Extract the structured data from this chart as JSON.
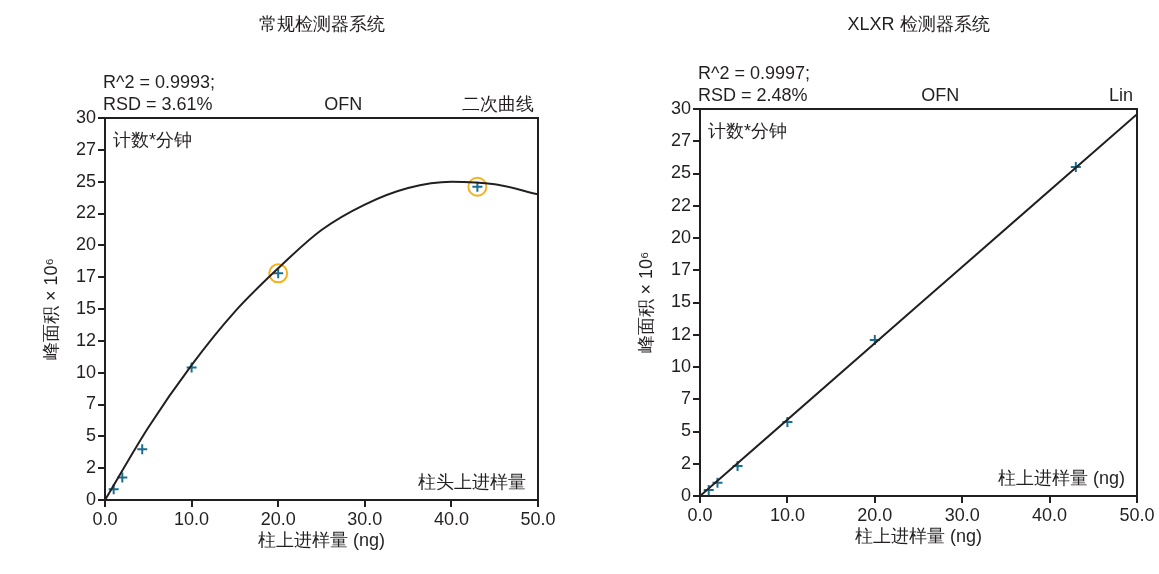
{
  "chart_data": [
    {
      "type": "scatter",
      "title": "常规检测器系统",
      "xlabel": "柱上进样量 (ng)",
      "ylabel": "峰面积 × 10⁶",
      "marker": "cross",
      "legend": false,
      "grid": false,
      "xlim": [
        0,
        50
      ],
      "xticks": [
        {
          "value": 0,
          "label": "0.0"
        },
        {
          "value": 10,
          "label": "10.0"
        },
        {
          "value": 20,
          "label": "20.0"
        },
        {
          "value": 30,
          "label": "30.0"
        },
        {
          "value": 40,
          "label": "40.0"
        },
        {
          "value": 50,
          "label": "50.0"
        }
      ],
      "ylim": [
        0,
        30
      ],
      "yticks": [
        0,
        {
          "value": 2.5,
          "label": "2"
        },
        5,
        {
          "value": 7.5,
          "label": "7"
        },
        10,
        {
          "value": 12.5,
          "label": "12"
        },
        15,
        {
          "value": 17.5,
          "label": "17"
        },
        20,
        {
          "value": 22.5,
          "label": "22"
        },
        25,
        {
          "value": 27.5,
          "label": "27"
        },
        30
      ],
      "annotations": [
        "R^2 = 0.9993;",
        "RSD = 3.61%",
        "OFN",
        "二次曲线",
        "计数*分钟",
        "柱头上进样量"
      ],
      "series": [
        {
          "type": "line",
          "color": "#231f20",
          "marker": "none",
          "x": [
            0,
            5,
            10,
            15,
            20,
            25,
            30,
            35,
            40,
            45,
            50
          ],
          "values": [
            0,
            5.7,
            10.6,
            14.8,
            18.2,
            21.2,
            23.2,
            24.5,
            25.0,
            24.8,
            24.0
          ]
        },
        {
          "color": "#1a6e8e",
          "x": [
            1,
            2,
            4.3,
            10,
            20,
            43
          ],
          "values": [
            0.84,
            1.76,
            3.98,
            10.4,
            17.8,
            24.6
          ]
        },
        {
          "type": "scatter",
          "color": "#f5b120",
          "marker": "circle",
          "x": [
            20,
            43
          ],
          "values": [
            17.8,
            24.6
          ]
        }
      ]
    },
    {
      "type": "scatter",
      "title": "XLXR 检测器系统",
      "xlabel": "柱上进样量 (ng)",
      "ylabel": "峰面积 × 10⁶",
      "marker": "cross",
      "legend": false,
      "grid": false,
      "xlim": [
        0,
        50
      ],
      "xticks": [
        {
          "value": 0,
          "label": "0.0"
        },
        {
          "value": 10,
          "label": "10.0"
        },
        {
          "value": 20,
          "label": "20.0"
        },
        {
          "value": 30,
          "label": "30.0"
        },
        {
          "value": 40,
          "label": "40.0"
        },
        {
          "value": 50,
          "label": "50.0"
        }
      ],
      "ylim": [
        0,
        30
      ],
      "yticks": [
        0,
        {
          "value": 2.5,
          "label": "2"
        },
        5,
        {
          "value": 7.5,
          "label": "7"
        },
        10,
        {
          "value": 12.5,
          "label": "12"
        },
        15,
        {
          "value": 17.5,
          "label": "17"
        },
        20,
        {
          "value": 22.5,
          "label": "22"
        },
        25,
        {
          "value": 27.5,
          "label": "27"
        },
        30
      ],
      "annotations": [
        "R^2 = 0.9997;",
        "RSD = 2.48%",
        "OFN",
        "Lin",
        "计数*分钟",
        "柱上进样量 (ng)"
      ],
      "series": [
        {
          "type": "line",
          "color": "#231f20",
          "marker": "none",
          "x": [
            0,
            50
          ],
          "values": [
            0,
            29.6
          ]
        },
        {
          "color": "#1a6e8e",
          "x": [
            1,
            2,
            4.3,
            10,
            20,
            43
          ],
          "values": [
            0.47,
            1.03,
            2.33,
            5.74,
            12.1,
            25.5
          ]
        }
      ]
    }
  ]
}
